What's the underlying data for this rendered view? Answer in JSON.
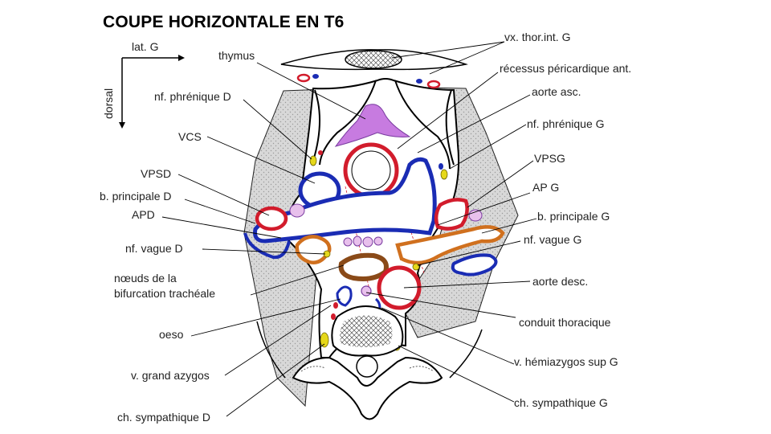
{
  "title": "COUPE HORIZONTALE EN T6",
  "orientation": {
    "lateral": "lat. G",
    "dorsal": "dorsal"
  },
  "labels": {
    "vx_thor_int": "vx. thor.int. G",
    "thymus": "thymus",
    "recessus": "récessus péricardique ant.",
    "aorte_asc": "aorte asc.",
    "nf_phrenique_d": "nf. phrénique D",
    "nf_phrenique_g": "nf. phrénique G",
    "vcs": "VCS",
    "vpsg": "VPSG",
    "vpsd": "VPSD",
    "ap_g": "AP G",
    "b_principale_d": "b. principale D",
    "apd": "APD",
    "b_principale_g": "b. principale G",
    "nf_vague_d": "nf. vague D",
    "nf_vague_g": "nf. vague G",
    "noeuds_1": "nœuds de la",
    "noeuds_2": "bifurcation trachéale",
    "aorte_desc": "aorte desc.",
    "conduit": "conduit thoracique",
    "oeso": "oeso",
    "hemiazygos": "v. hémiazygos sup G",
    "grand_azygos": "v. grand azygos",
    "ch_sympa_g": "ch. sympathique G",
    "ch_sympa_d": "ch. sympathique D"
  },
  "colors": {
    "artery": "#d21c2c",
    "vein": "#1a2cb4",
    "nerve": "#e6d81a",
    "thymus": "#c77be0",
    "lymph": "#e8c0ec",
    "bronchus": "#d0701e",
    "lung": "#d6d6d6"
  }
}
